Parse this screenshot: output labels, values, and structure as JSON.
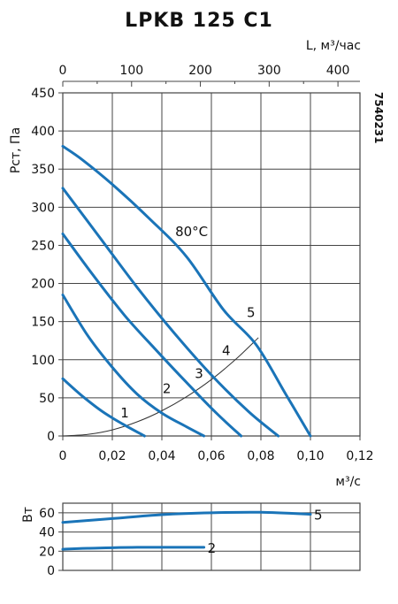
{
  "title": "LPKB 125 C1",
  "code": "7540231",
  "colors": {
    "curve": "#1a74b8",
    "grid": "#444444",
    "system": "#333333",
    "text": "#111111"
  },
  "chart_data": [
    {
      "type": "line",
      "xlabel": "м³/с",
      "ylabel": "Рст, Па",
      "top_axis_label": "L, м³/час",
      "xlim": [
        0,
        0.12
      ],
      "ylim": [
        0,
        450
      ],
      "x_ticks": [
        "0",
        "0,02",
        "0,04",
        "0,06",
        "0,08",
        "0,10",
        "0,12"
      ],
      "y_ticks": [
        "0",
        "50",
        "100",
        "150",
        "200",
        "250",
        "300",
        "350",
        "400",
        "450"
      ],
      "top_xlim": [
        0,
        432
      ],
      "top_ticks": [
        "0",
        "100",
        "200",
        "300",
        "400"
      ],
      "annotation": "80°C",
      "grid": true,
      "series": [
        {
          "name": "1",
          "points": [
            [
              0,
              75
            ],
            [
              0.008,
              52
            ],
            [
              0.016,
              32
            ],
            [
              0.024,
              16
            ],
            [
              0.033,
              0
            ]
          ]
        },
        {
          "name": "2",
          "points": [
            [
              0,
              185
            ],
            [
              0.01,
              132
            ],
            [
              0.02,
              90
            ],
            [
              0.03,
              55
            ],
            [
              0.04,
              30
            ],
            [
              0.05,
              12
            ],
            [
              0.057,
              0
            ]
          ]
        },
        {
          "name": "3",
          "points": [
            [
              0,
              265
            ],
            [
              0.012,
              212
            ],
            [
              0.025,
              158
            ],
            [
              0.037,
              115
            ],
            [
              0.05,
              70
            ],
            [
              0.062,
              30
            ],
            [
              0.072,
              0
            ]
          ]
        },
        {
          "name": "4",
          "points": [
            [
              0,
              325
            ],
            [
              0.015,
              260
            ],
            [
              0.03,
              195
            ],
            [
              0.045,
              135
            ],
            [
              0.06,
              80
            ],
            [
              0.075,
              32
            ],
            [
              0.087,
              0
            ]
          ]
        },
        {
          "name": "5",
          "points": [
            [
              0,
              380
            ],
            [
              0.008,
              362
            ],
            [
              0.02,
              330
            ],
            [
              0.035,
              285
            ],
            [
              0.05,
              235
            ],
            [
              0.065,
              165
            ],
            [
              0.078,
              120
            ],
            [
              0.09,
              55
            ],
            [
              0.1,
              0
            ]
          ]
        }
      ],
      "system_curve": {
        "points": [
          [
            0,
            0
          ],
          [
            0.01,
            2
          ],
          [
            0.02,
            8
          ],
          [
            0.03,
            18.5
          ],
          [
            0.04,
            33
          ],
          [
            0.05,
            51.5
          ],
          [
            0.06,
            74
          ],
          [
            0.07,
            101
          ],
          [
            0.079,
            129
          ]
        ]
      },
      "curve_labels": [
        {
          "text": "1",
          "x": 0.025,
          "y": 30
        },
        {
          "text": "2",
          "x": 0.042,
          "y": 62
        },
        {
          "text": "3",
          "x": 0.055,
          "y": 82
        },
        {
          "text": "4",
          "x": 0.066,
          "y": 112
        },
        {
          "text": "5",
          "x": 0.076,
          "y": 162
        }
      ],
      "annotation_pos": {
        "x": 0.052,
        "y": 268
      }
    },
    {
      "type": "line",
      "xlabel": "",
      "ylabel": "Вт",
      "xlim": [
        0,
        0.12
      ],
      "ylim": [
        0,
        70
      ],
      "y_ticks": [
        "0",
        "20",
        "40",
        "60"
      ],
      "grid": true,
      "series": [
        {
          "name": "2",
          "points": [
            [
              0,
              22
            ],
            [
              0.01,
              23
            ],
            [
              0.03,
              24
            ],
            [
              0.057,
              24
            ]
          ]
        },
        {
          "name": "5",
          "points": [
            [
              0,
              50
            ],
            [
              0.02,
              54
            ],
            [
              0.04,
              58
            ],
            [
              0.06,
              60
            ],
            [
              0.08,
              60.5
            ],
            [
              0.1,
              58.5
            ]
          ]
        }
      ]
    }
  ]
}
